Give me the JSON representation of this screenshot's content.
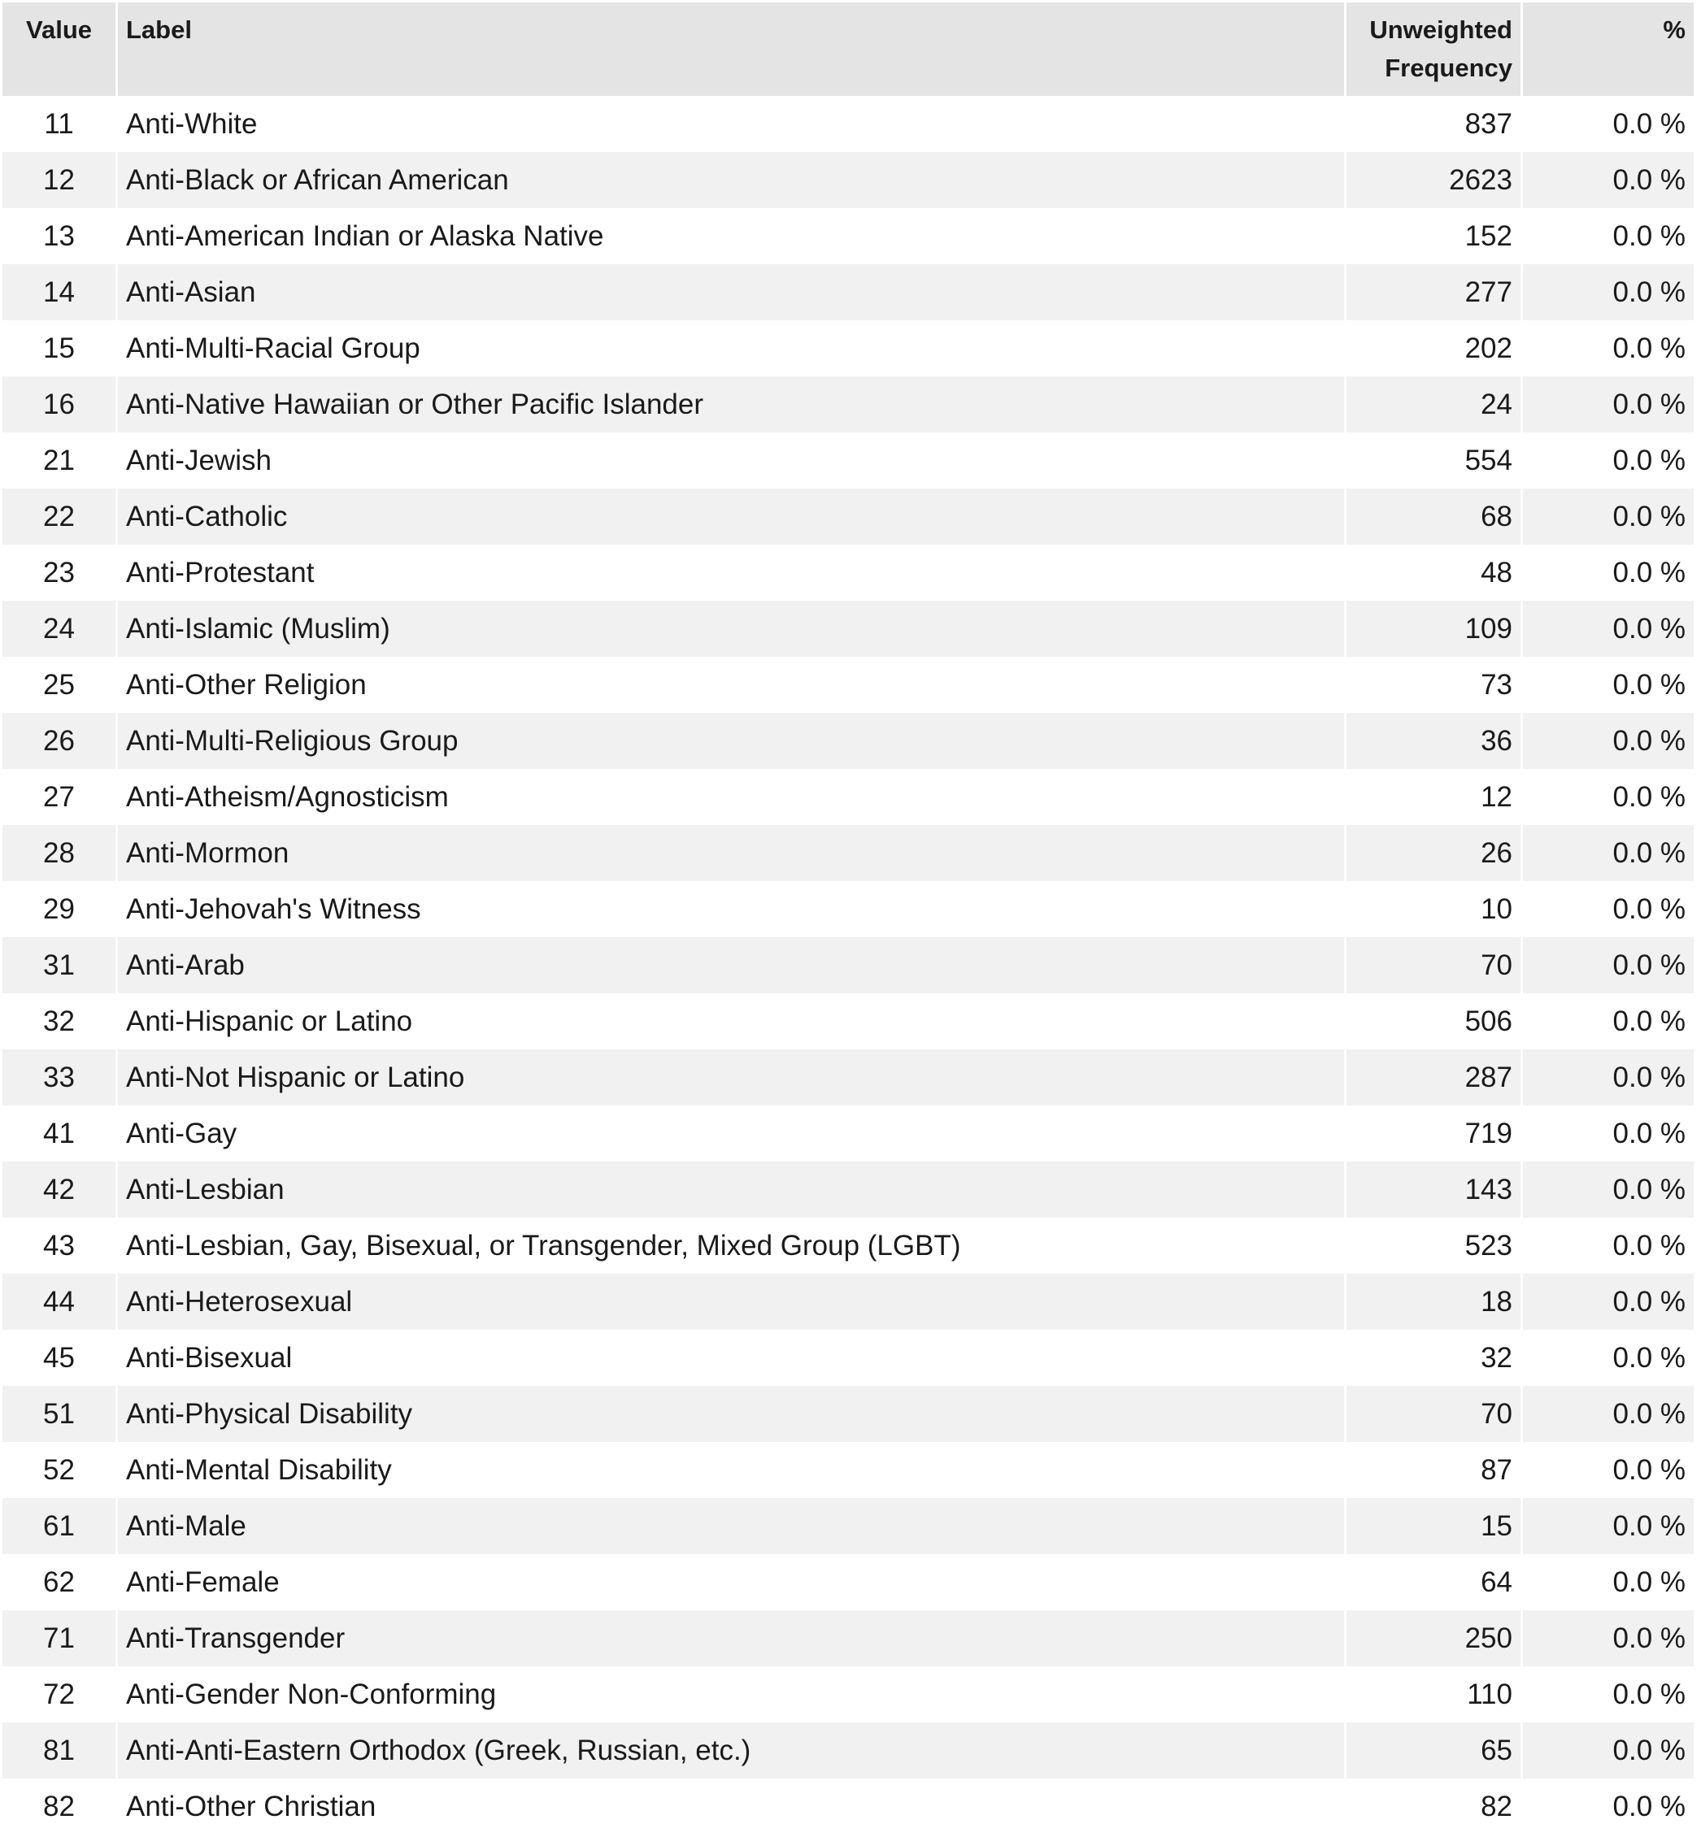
{
  "table": {
    "headers": {
      "value": "Value",
      "label": "Label",
      "frequency": "Unweighted Frequency",
      "percent": "%"
    },
    "rows": [
      {
        "value": "11",
        "label": "Anti-White",
        "frequency": "837",
        "percent": "0.0 %"
      },
      {
        "value": "12",
        "label": "Anti-Black or African American",
        "frequency": "2623",
        "percent": "0.0 %"
      },
      {
        "value": "13",
        "label": "Anti-American Indian or Alaska Native",
        "frequency": "152",
        "percent": "0.0 %"
      },
      {
        "value": "14",
        "label": "Anti-Asian",
        "frequency": "277",
        "percent": "0.0 %"
      },
      {
        "value": "15",
        "label": "Anti-Multi-Racial Group",
        "frequency": "202",
        "percent": "0.0 %"
      },
      {
        "value": "16",
        "label": "Anti-Native Hawaiian or Other Pacific Islander",
        "frequency": "24",
        "percent": "0.0 %"
      },
      {
        "value": "21",
        "label": "Anti-Jewish",
        "frequency": "554",
        "percent": "0.0 %"
      },
      {
        "value": "22",
        "label": "Anti-Catholic",
        "frequency": "68",
        "percent": "0.0 %"
      },
      {
        "value": "23",
        "label": "Anti-Protestant",
        "frequency": "48",
        "percent": "0.0 %"
      },
      {
        "value": "24",
        "label": "Anti-Islamic (Muslim)",
        "frequency": "109",
        "percent": "0.0 %"
      },
      {
        "value": "25",
        "label": "Anti-Other Religion",
        "frequency": "73",
        "percent": "0.0 %"
      },
      {
        "value": "26",
        "label": "Anti-Multi-Religious Group",
        "frequency": "36",
        "percent": "0.0 %"
      },
      {
        "value": "27",
        "label": "Anti-Atheism/Agnosticism",
        "frequency": "12",
        "percent": "0.0 %"
      },
      {
        "value": "28",
        "label": "Anti-Mormon",
        "frequency": "26",
        "percent": "0.0 %"
      },
      {
        "value": "29",
        "label": "Anti-Jehovah's Witness",
        "frequency": "10",
        "percent": "0.0 %"
      },
      {
        "value": "31",
        "label": "Anti-Arab",
        "frequency": "70",
        "percent": "0.0 %"
      },
      {
        "value": "32",
        "label": "Anti-Hispanic or Latino",
        "frequency": "506",
        "percent": "0.0 %"
      },
      {
        "value": "33",
        "label": "Anti-Not Hispanic or Latino",
        "frequency": "287",
        "percent": "0.0 %"
      },
      {
        "value": "41",
        "label": "Anti-Gay",
        "frequency": "719",
        "percent": "0.0 %"
      },
      {
        "value": "42",
        "label": "Anti-Lesbian",
        "frequency": "143",
        "percent": "0.0 %"
      },
      {
        "value": "43",
        "label": "Anti-Lesbian, Gay, Bisexual, or Transgender, Mixed Group (LGBT)",
        "frequency": "523",
        "percent": "0.0 %"
      },
      {
        "value": "44",
        "label": "Anti-Heterosexual",
        "frequency": "18",
        "percent": "0.0 %"
      },
      {
        "value": "45",
        "label": "Anti-Bisexual",
        "frequency": "32",
        "percent": "0.0 %"
      },
      {
        "value": "51",
        "label": "Anti-Physical Disability",
        "frequency": "70",
        "percent": "0.0 %"
      },
      {
        "value": "52",
        "label": "Anti-Mental Disability",
        "frequency": "87",
        "percent": "0.0 %"
      },
      {
        "value": "61",
        "label": "Anti-Male",
        "frequency": "15",
        "percent": "0.0 %"
      },
      {
        "value": "62",
        "label": "Anti-Female",
        "frequency": "64",
        "percent": "0.0 %"
      },
      {
        "value": "71",
        "label": "Anti-Transgender",
        "frequency": "250",
        "percent": "0.0 %"
      },
      {
        "value": "72",
        "label": "Anti-Gender Non-Conforming",
        "frequency": "110",
        "percent": "0.0 %"
      },
      {
        "value": "81",
        "label": "Anti-Anti-Eastern Orthodox (Greek, Russian, etc.)",
        "frequency": "65",
        "percent": "0.0 %"
      },
      {
        "value": "82",
        "label": "Anti-Other Christian",
        "frequency": "82",
        "percent": "0.0 %"
      }
    ]
  }
}
